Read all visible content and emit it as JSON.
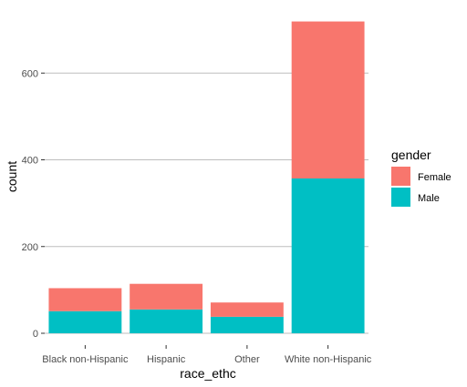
{
  "chart_data": {
    "type": "bar",
    "stacked": true,
    "categories": [
      "Black non-Hispanic",
      "Hispanic",
      "Other",
      "White non-Hispanic"
    ],
    "series": [
      {
        "name": "Female",
        "values": [
          53,
          59,
          33,
          362
        ],
        "color": "#F8766D"
      },
      {
        "name": "Male",
        "values": [
          51,
          55,
          38,
          357
        ],
        "color": "#00BFC4"
      }
    ],
    "xlabel": "race_ethc",
    "ylabel": "count",
    "yticks": [
      0,
      200,
      400,
      600
    ],
    "ylim": [
      0,
      720
    ],
    "grid": true,
    "legend": {
      "title": "gender",
      "position": "right"
    }
  }
}
